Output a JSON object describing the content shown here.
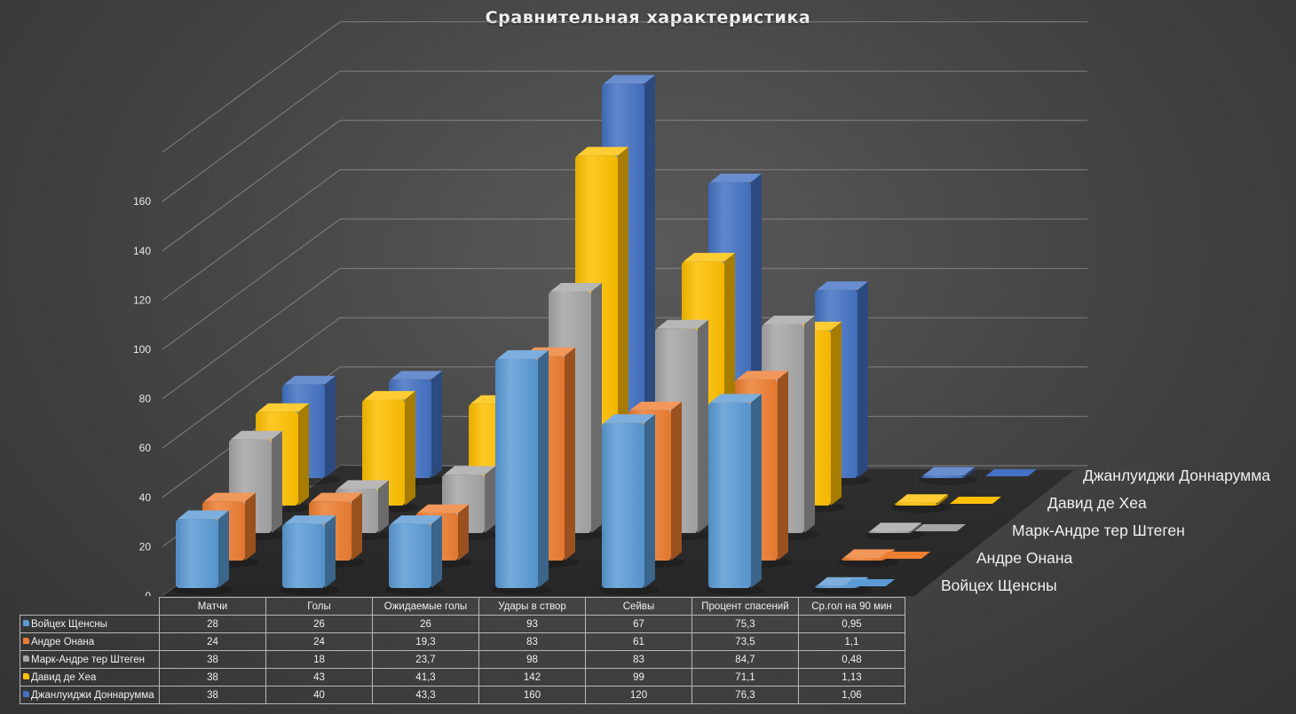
{
  "chart_data": {
    "type": "bar",
    "subtype": "3d-column",
    "title": "Сравнительная характеристика",
    "categories": [
      "Матчи",
      "Голы",
      "Ожидаемые голы",
      "Удары в створ",
      "Сейвы",
      "Процент спасений",
      "Ср.гол на 90 мин"
    ],
    "series": [
      {
        "name": "Войцех Щенсны",
        "color": "#5b9bd5",
        "values": [
          28,
          26,
          26,
          93,
          67,
          75.3,
          0.95
        ],
        "labels": [
          "28",
          "26",
          "26",
          "93",
          "67",
          "75,3",
          "0,95"
        ]
      },
      {
        "name": "Андре Онана",
        "color": "#ed7d31",
        "values": [
          24,
          24,
          19.3,
          83,
          61,
          73.5,
          1.1
        ],
        "labels": [
          "24",
          "24",
          "19,3",
          "83",
          "61",
          "73,5",
          "1,1"
        ]
      },
      {
        "name": "Марк-Андре тер Штеген",
        "color": "#a5a5a5",
        "values": [
          38,
          18,
          23.7,
          98,
          83,
          84.7,
          0.48
        ],
        "labels": [
          "38",
          "18",
          "23,7",
          "98",
          "83",
          "84,7",
          "0,48"
        ]
      },
      {
        "name": "Давид де Хеа",
        "color": "#ffc000",
        "values": [
          38,
          43,
          41.3,
          142,
          99,
          71.1,
          1.13
        ],
        "labels": [
          "38",
          "43",
          "41,3",
          "142",
          "99",
          "71,1",
          "1,13"
        ]
      },
      {
        "name": "Джанлуиджи Доннарумма",
        "color": "#4472c4",
        "values": [
          38,
          40,
          43.3,
          160,
          120,
          76.3,
          1.06
        ],
        "labels": [
          "38",
          "40",
          "43,3",
          "160",
          "120",
          "76,3",
          "1,06"
        ]
      }
    ],
    "y_ticks": [
      "0",
      "20",
      "40",
      "60",
      "80",
      "100",
      "120",
      "140",
      "160"
    ],
    "ylim": [
      0,
      160
    ],
    "grid": true,
    "data_table": true
  }
}
